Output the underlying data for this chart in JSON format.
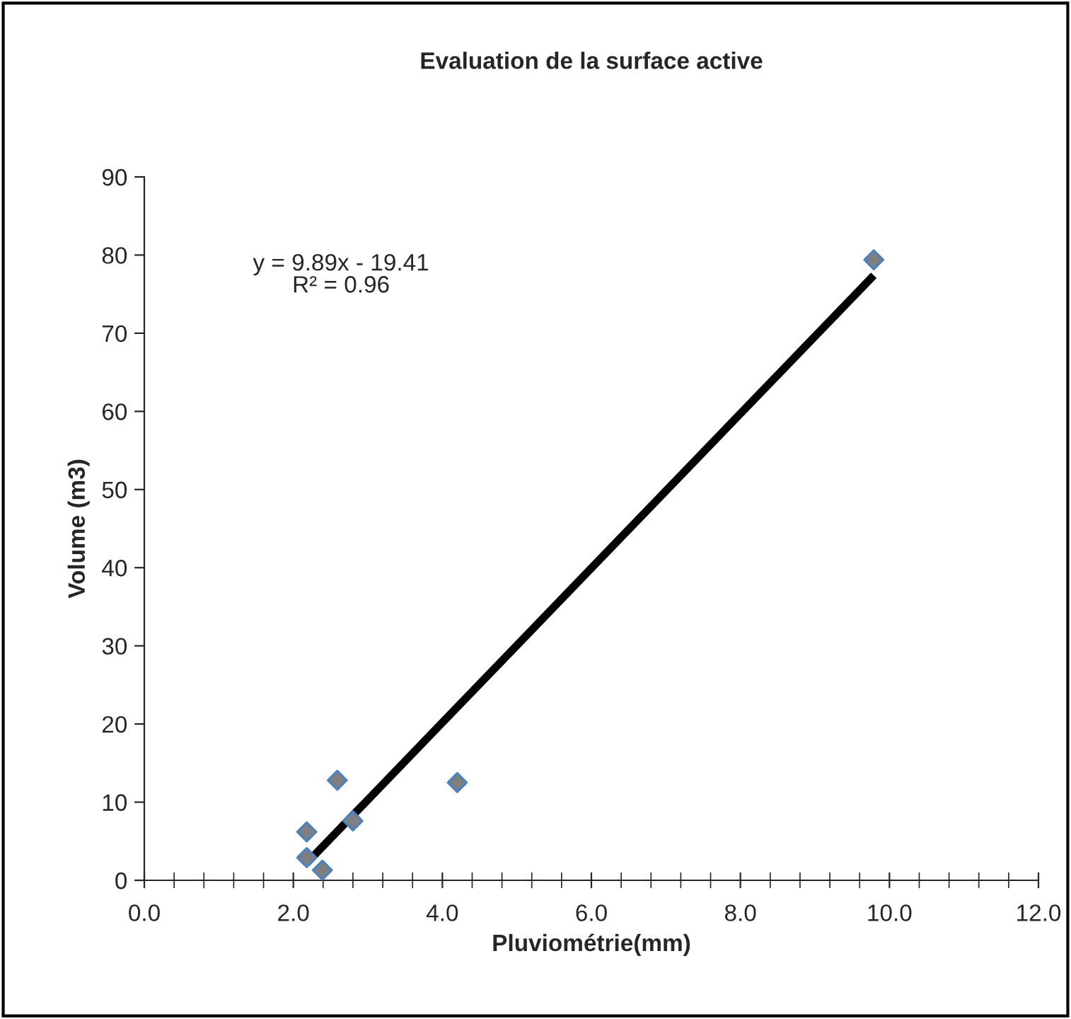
{
  "chart_data": {
    "type": "scatter",
    "title": "Evaluation de la surface active",
    "xlabel": "Pluviométrie(mm)",
    "ylabel": "Volume (m3)",
    "xlim": [
      0,
      12
    ],
    "ylim": [
      0,
      90
    ],
    "xticks": [
      {
        "value": 0,
        "label": "0.0"
      },
      {
        "value": 2,
        "label": "2.0"
      },
      {
        "value": 4,
        "label": "4.0"
      },
      {
        "value": 6,
        "label": "6.0"
      },
      {
        "value": 8,
        "label": "8.0"
      },
      {
        "value": 10,
        "label": "10.0"
      },
      {
        "value": 12,
        "label": "12.0"
      }
    ],
    "yticks": [
      0,
      10,
      20,
      30,
      40,
      50,
      60,
      70,
      80,
      90
    ],
    "grid": false,
    "legend": false,
    "marker": "diamond",
    "series": [
      {
        "color": "#7f7f7f",
        "x": [
          2.18,
          2.18,
          2.39,
          2.59,
          2.8,
          4.2,
          9.79
        ],
        "values": [
          6.2,
          2.9,
          1.3,
          12.8,
          7.6,
          12.5,
          79.4
        ]
      },
      {
        "type": "line",
        "marker": "none",
        "color": "#000000",
        "x": [
          2.18,
          9.79
        ],
        "values": [
          2.2,
          77.4
        ]
      }
    ],
    "annotations": [
      "y = 9.89x - 19.41\nR² = 0.96"
    ]
  }
}
